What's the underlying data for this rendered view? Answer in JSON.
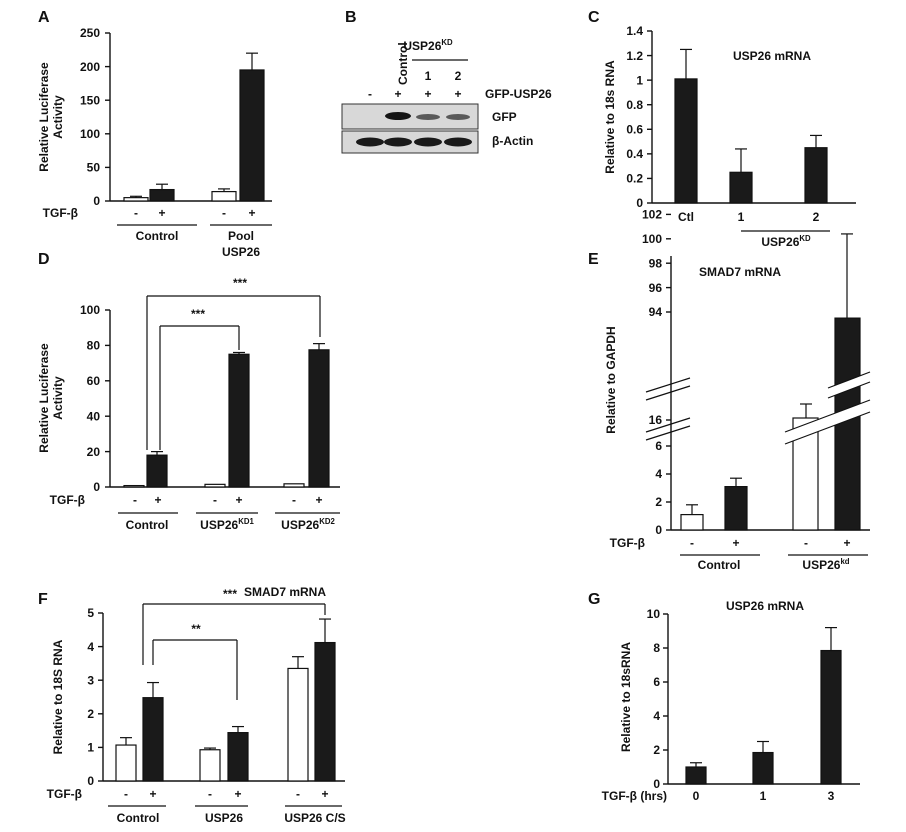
{
  "chart_data": [
    {
      "panel": "A",
      "type": "bar",
      "ylabel": "Relative Luciferase Activity",
      "ylim": [
        0,
        250
      ],
      "yticks": [
        "0",
        "50",
        "100",
        "150",
        "200",
        "250"
      ],
      "treatment_label": "TGF-β",
      "treatment_marks": [
        "-",
        "+",
        "-",
        "+"
      ],
      "groups": [
        "Control",
        "Pool USP26"
      ],
      "series": [
        {
          "name": "TGF-β -",
          "fill": "#ffffff",
          "values": [
            5,
            14
          ],
          "errors": [
            2,
            4
          ]
        },
        {
          "name": "TGF-β +",
          "fill": "#1a1a1a",
          "values": [
            17,
            195
          ],
          "errors": [
            8,
            25
          ]
        }
      ]
    },
    {
      "panel": "B",
      "type": "western-blot",
      "lane_header": "Control",
      "kd_header": "USP26",
      "kd_superscript": "KD",
      "lane_numbers": [
        "1",
        "2"
      ],
      "gfp_row": [
        "-",
        "+",
        "+",
        "+"
      ],
      "gfp_row_label": "GFP-USP26",
      "bands": [
        "GFP",
        "β-Actin"
      ]
    },
    {
      "panel": "C",
      "type": "bar",
      "title": "USP26 mRNA",
      "ylabel": "Relative to 18s RNA",
      "ylim": [
        0,
        1.4
      ],
      "yticks": [
        "0",
        "0.2",
        "0.4",
        "0.6",
        "0.8",
        "1",
        "1.2",
        "1.4"
      ],
      "categories": [
        "Ctl",
        "1",
        "2"
      ],
      "values": [
        1.01,
        0.25,
        0.45
      ],
      "errors": [
        0.24,
        0.19,
        0.1
      ],
      "group_label": "USP26",
      "group_superscript": "KD"
    },
    {
      "panel": "D",
      "type": "bar",
      "ylabel": "Relative Luciferase Activity",
      "ylim": [
        0,
        100
      ],
      "yticks": [
        "0",
        "20",
        "40",
        "60",
        "80",
        "100"
      ],
      "treatment_label": "TGF-β",
      "treatment_marks": [
        "-",
        "+",
        "-",
        "+",
        "-",
        "+"
      ],
      "groups": [
        "Control",
        "USP26",
        "USP26"
      ],
      "group_superscripts": [
        "",
        "KD1",
        "KD2"
      ],
      "series": [
        {
          "name": "TGF-β -",
          "fill": "#ffffff",
          "values": [
            0.8,
            1.5,
            1.8
          ],
          "errors": [
            0,
            0,
            0
          ]
        },
        {
          "name": "TGF-β +",
          "fill": "#1a1a1a",
          "values": [
            18,
            75,
            77.5
          ],
          "errors": [
            2,
            1,
            3.5
          ]
        }
      ],
      "significance": [
        "***",
        "***"
      ]
    },
    {
      "panel": "E",
      "type": "bar",
      "title": "SMAD7 mRNA",
      "ylabel": "Relative to GAPDH",
      "yticks": [
        "0",
        "2",
        "4",
        "6",
        "16",
        "94",
        "96",
        "98",
        "100",
        "102"
      ],
      "axis_break": true,
      "treatment_label": "TGF-β",
      "treatment_marks": [
        "-",
        "+",
        "-",
        "+"
      ],
      "groups": [
        "Control",
        "USP26"
      ],
      "group_superscripts": [
        "",
        "kd"
      ],
      "series": [
        {
          "name": "TGF-β -",
          "fill": "#ffffff",
          "values": [
            1.1,
            16
          ],
          "errors": [
            0.7,
            1.2
          ]
        },
        {
          "name": "TGF-β +",
          "fill": "#1a1a1a",
          "values": [
            3.1,
            93.5
          ],
          "errors": [
            0.6,
            6.9
          ]
        }
      ]
    },
    {
      "panel": "F",
      "type": "bar",
      "title": "SMAD7 mRNA",
      "ylabel": "Relative to 18S RNA",
      "ylim": [
        0,
        5
      ],
      "yticks": [
        "0",
        "1",
        "2",
        "3",
        "4",
        "5"
      ],
      "treatment_label": "TGF-β",
      "treatment_marks": [
        "-",
        "+",
        "-",
        "+",
        "-",
        "+"
      ],
      "groups": [
        "Control",
        "USP26",
        "USP26 C/S"
      ],
      "series": [
        {
          "name": "TGF-β -",
          "fill": "#ffffff",
          "values": [
            1.07,
            0.93,
            3.35
          ],
          "errors": [
            0.22,
            0.05,
            0.35
          ]
        },
        {
          "name": "TGF-β +",
          "fill": "#1a1a1a",
          "values": [
            2.48,
            1.44,
            4.12
          ],
          "errors": [
            0.45,
            0.18,
            0.7
          ]
        }
      ],
      "significance": [
        "***",
        "**"
      ]
    },
    {
      "panel": "G",
      "type": "bar",
      "title": "USP26 mRNA",
      "ylabel": "Relative to 18sRNA",
      "ylim": [
        0,
        10
      ],
      "yticks": [
        "0",
        "2",
        "4",
        "6",
        "8",
        "10"
      ],
      "xlabel": "TGF-β (hrs)",
      "categories": [
        "0",
        "1",
        "3"
      ],
      "values": [
        1.0,
        1.85,
        7.85
      ],
      "errors": [
        0.25,
        0.65,
        1.35
      ]
    }
  ]
}
